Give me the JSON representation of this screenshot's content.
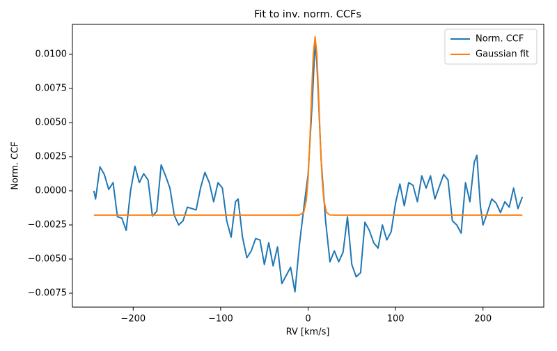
{
  "chart_data": {
    "type": "line",
    "title": "Fit to inv. norm. CCFs",
    "xlabel": "RV [km/s]",
    "ylabel": "Norm. CCF",
    "xlim": [
      -269.5,
      269.5
    ],
    "ylim": [
      -0.00852,
      0.01219
    ],
    "xticks": [
      {
        "value": -200,
        "label": "−200"
      },
      {
        "value": -100,
        "label": "−100"
      },
      0,
      100,
      200
    ],
    "yticks": [
      {
        "value": -0.0075,
        "label": "−0.0075"
      },
      {
        "value": -0.005,
        "label": "−0.0050"
      },
      {
        "value": -0.0025,
        "label": "−0.0025"
      },
      {
        "value": 0,
        "label": "0.0000"
      },
      {
        "value": 0.0025,
        "label": "0.0025"
      },
      {
        "value": 0.005,
        "label": "0.0050"
      },
      {
        "value": 0.0075,
        "label": "0.0075"
      },
      {
        "value": 0.01,
        "label": "0.0100"
      }
    ],
    "legend": "upper right",
    "series": [
      {
        "name": "Norm. CCF",
        "color": "#1f77b4",
        "x": [
          -245,
          -243,
          -238,
          -233,
          -228,
          -223,
          -218,
          -213,
          -208,
          -203,
          -198,
          -193,
          -188,
          -183,
          -178,
          -173,
          -168,
          -163,
          -158,
          -153,
          -148,
          -143,
          -138,
          -133,
          -128,
          -123,
          -118,
          -113,
          -108,
          -103,
          -98,
          -93,
          -88,
          -83,
          -80,
          -75,
          -70,
          -65,
          -60,
          -55,
          -50,
          -45,
          -40,
          -35,
          -30,
          -25,
          -20,
          -15,
          -10,
          -5,
          0,
          5,
          8,
          10,
          15,
          20,
          25,
          30,
          35,
          40,
          45,
          50,
          55,
          60,
          65,
          70,
          75,
          80,
          85,
          90,
          95,
          100,
          105,
          110,
          115,
          120,
          125,
          130,
          135,
          140,
          145,
          150,
          155,
          160,
          165,
          170,
          175,
          180,
          185,
          190,
          193,
          197,
          200,
          205,
          210,
          215,
          220,
          225,
          230,
          235,
          240,
          245
        ],
        "values": [
          0.0,
          -0.0006,
          0.00175,
          0.0012,
          0.0001,
          0.0006,
          -0.0019,
          -0.002,
          -0.0029,
          0.0,
          0.0018,
          0.0006,
          0.00125,
          0.0008,
          -0.00185,
          -0.0015,
          0.0019,
          0.0011,
          0.0002,
          -0.0018,
          -0.0025,
          -0.0022,
          -0.0012,
          -0.0013,
          -0.0014,
          0.0002,
          0.00135,
          0.0006,
          -0.0008,
          0.0006,
          0.0002,
          -0.0022,
          -0.0034,
          -0.0008,
          -0.0006,
          -0.0034,
          -0.0049,
          -0.0044,
          -0.0035,
          -0.0036,
          -0.0054,
          -0.0038,
          -0.0055,
          -0.0041,
          -0.0068,
          -0.0062,
          -0.0056,
          -0.0074,
          -0.004,
          -0.0013,
          0.0012,
          0.0068,
          0.0109,
          0.0094,
          0.0022,
          -0.0022,
          -0.0052,
          -0.0044,
          -0.0052,
          -0.0045,
          -0.0019,
          -0.0054,
          -0.0063,
          -0.006,
          -0.0023,
          -0.0029,
          -0.0038,
          -0.0042,
          -0.0025,
          -0.0036,
          -0.003,
          -0.0009,
          0.0005,
          -0.0011,
          0.0006,
          0.0004,
          -0.0008,
          0.0011,
          0.0002,
          0.0011,
          -0.0006,
          0.0003,
          0.0012,
          0.0008,
          -0.0022,
          -0.0025,
          -0.0031,
          0.0006,
          -0.0008,
          0.0021,
          0.0026,
          -0.0011,
          -0.0025,
          -0.0016,
          -0.0006,
          -0.0009,
          -0.0016,
          -0.0008,
          -0.0012,
          0.0002,
          -0.0013,
          -0.00045
        ]
      },
      {
        "name": "Gaussian fit",
        "color": "#ff7f0e",
        "x": [
          -245,
          -20,
          -10,
          -5,
          -2,
          0,
          2,
          4,
          6,
          8,
          10,
          12,
          14,
          16,
          18,
          21,
          25,
          30,
          245
        ],
        "values": [
          -0.00178,
          -0.00178,
          -0.00178,
          -0.00158,
          -0.00068,
          0.00091,
          0.00359,
          0.00702,
          0.01005,
          0.01128,
          0.01005,
          0.00702,
          0.00359,
          0.00091,
          -0.00068,
          -0.00158,
          -0.00177,
          -0.00178,
          -0.00178
        ]
      }
    ]
  }
}
